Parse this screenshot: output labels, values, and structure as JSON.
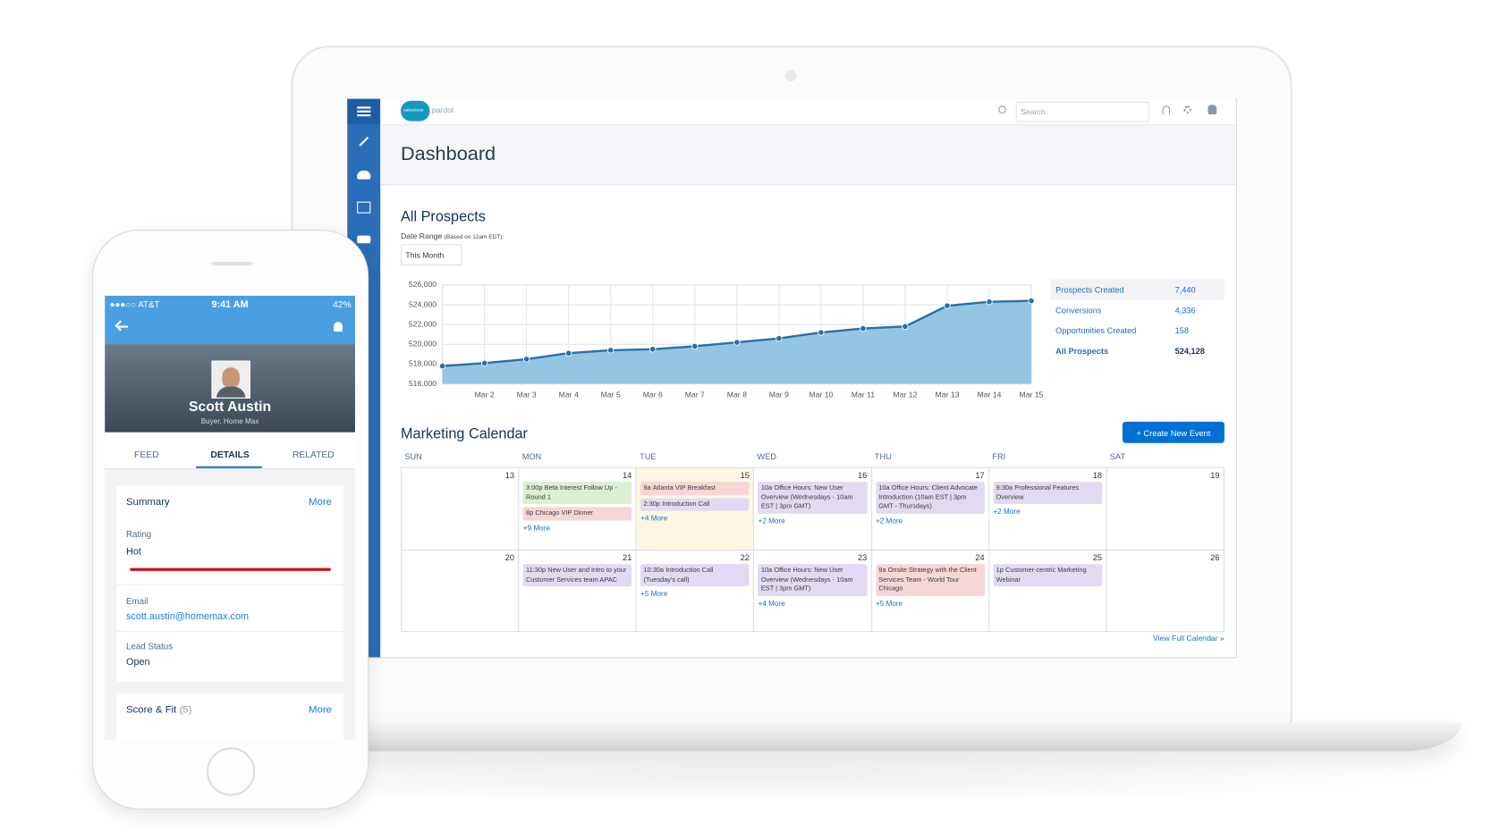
{
  "header": {
    "logo": "salesforce",
    "product": "pardot",
    "search_placeholder": "Search"
  },
  "page_title": "Dashboard",
  "prospects": {
    "title": "All Prospects",
    "date_range_label": "Date Range",
    "date_range_note": "(Based on 12am EDT):",
    "date_range_value": "This Month",
    "stats": [
      {
        "label": "Prospects Created",
        "value": "7,440"
      },
      {
        "label": "Conversions",
        "value": "4,336"
      },
      {
        "label": "Opportunities Created",
        "value": "158"
      },
      {
        "label": "All Prospects",
        "value": "524,128"
      }
    ]
  },
  "chart_data": {
    "type": "area",
    "categories": [
      null,
      "Mar 2",
      "Mar 3",
      "Mar 4",
      "Mar 5",
      "Mar 6",
      "Mar 7",
      "Mar 8",
      "Mar 9",
      "Mar 10",
      "Mar 11",
      "Mar 12",
      "Mar 13",
      "Mar 14",
      "Mar 15"
    ],
    "values": [
      517800,
      518100,
      518500,
      519100,
      519400,
      519500,
      519800,
      520200,
      520600,
      521200,
      521600,
      521800,
      523900,
      524300,
      524400
    ],
    "color": "#2a6fa8",
    "fill_color": "#8ec3e1",
    "ylim": [
      516000,
      526000
    ],
    "yticks": [
      {
        "value": 516000,
        "label": "516,000"
      },
      {
        "value": 518000,
        "label": "518,000"
      },
      {
        "value": 520000,
        "label": "520,000"
      },
      {
        "value": 522000,
        "label": "522,000"
      },
      {
        "value": 524000,
        "label": "524,000"
      },
      {
        "value": 526000,
        "label": "526,000"
      }
    ],
    "grid": true
  },
  "calendar": {
    "title": "Marketing Calendar",
    "create_button": "+ Create New Event",
    "weekdays": [
      "SUN",
      "MON",
      "TUE",
      "WED",
      "THU",
      "FRI",
      "SAT"
    ],
    "today": 15,
    "weeks": [
      {
        "days": [
          {
            "day": 13
          },
          {
            "day": 14,
            "events": [
              {
                "time": "3:00p",
                "text": "Beta Interest Follow Up - Round 1",
                "color": "#dcefd2"
              },
              {
                "time": "8p",
                "text": "Chicago VIP Dinner",
                "color": "#f6d6d6"
              }
            ],
            "more": "+9 More"
          },
          {
            "day": 15,
            "events": [
              {
                "time": "9a",
                "text": "Atlanta VIP Breakfast",
                "color": "#f6d6d6"
              },
              {
                "time": "2:30p",
                "text": "Introduction Call",
                "color": "#e2daf3"
              }
            ],
            "more": "+4 More"
          },
          {
            "day": 16,
            "events": [
              {
                "time": "10a",
                "text": "Office Hours: New User Overview (Wednesdays - 10am EST | 3pm GMT)",
                "color": "#e2daf3"
              }
            ],
            "more": "+2 More"
          },
          {
            "day": 17,
            "events": [
              {
                "time": "10a",
                "text": "Office Hours: Client Advocate Introduction (10am EST | 3pm GMT - Thursdays)",
                "color": "#e2daf3"
              }
            ],
            "more": "+2 More"
          },
          {
            "day": 18,
            "events": [
              {
                "time": "9:30a",
                "text": "Professional Features Overview",
                "color": "#e2daf3"
              }
            ],
            "more": "+2 More"
          },
          {
            "day": 19
          }
        ]
      },
      {
        "days": [
          {
            "day": 20
          },
          {
            "day": 21,
            "events": [
              {
                "time": "11:30p",
                "text": "New User and Intro to your Customer Services team APAC",
                "color": "#e2daf3"
              }
            ]
          },
          {
            "day": 22,
            "events": [
              {
                "time": "10:30a",
                "text": "Introduction Call (Tuesday's call)",
                "color": "#e2daf3"
              }
            ],
            "more": "+5 More"
          },
          {
            "day": 23,
            "events": [
              {
                "time": "10a",
                "text": "Office Hours: New User Overview (Wednesdays - 10am EST | 3pm GMT)",
                "color": "#e2daf3"
              }
            ],
            "more": "+4 More"
          },
          {
            "day": 24,
            "events": [
              {
                "time": "9a",
                "text": "Onsite Strategy with the Client Services Team - World Tour Chicago",
                "color": "#f6d6d6"
              }
            ],
            "more": "+5 More"
          },
          {
            "day": 25,
            "events": [
              {
                "time": "1p",
                "text": "Customer-centric Marketing Webinar",
                "color": "#e2daf3"
              }
            ]
          },
          {
            "day": 26
          }
        ]
      }
    ],
    "footer_link": "View Full Calendar »"
  },
  "phone": {
    "status": {
      "carrier": "AT&T",
      "time": "9:41 AM",
      "battery": "42%"
    },
    "contact": {
      "name": "Scott Austin",
      "subtitle": "Buyer,  Home Max"
    },
    "tabs": [
      "FEED",
      "DETAILS",
      "RELATED"
    ],
    "active_tab": 1,
    "summary": {
      "title": "Summary",
      "more": "More",
      "fields": [
        {
          "label": "Rating",
          "value": "Hot"
        },
        {
          "label": "Email",
          "value": "scott.austin@homemax.com"
        },
        {
          "label": "Lead Status",
          "value": "Open"
        }
      ]
    },
    "score": {
      "title": "Score & Fit",
      "count": "(5)",
      "more": "More"
    }
  }
}
